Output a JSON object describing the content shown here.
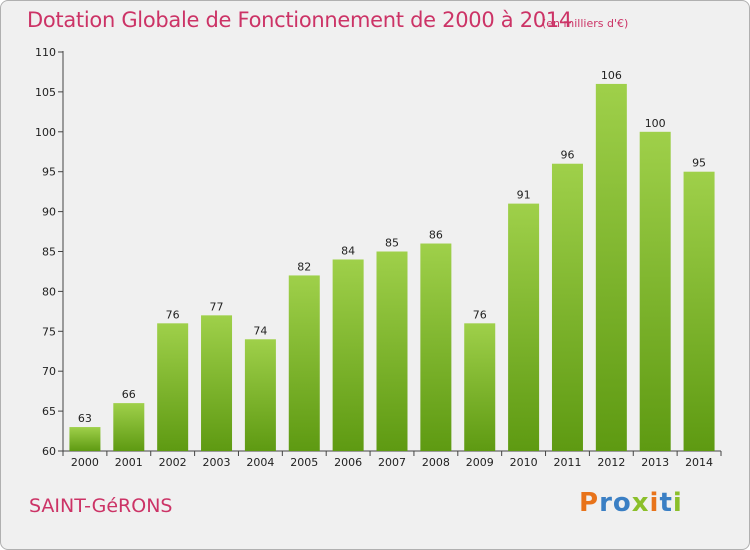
{
  "chart_data": {
    "type": "bar",
    "title": "Dotation Globale de Fonctionnement de 2000 à 2014",
    "unit": "(en milliers d'€)",
    "categories": [
      "2000",
      "2001",
      "2002",
      "2003",
      "2004",
      "2005",
      "2006",
      "2007",
      "2008",
      "2009",
      "2010",
      "2011",
      "2012",
      "2013",
      "2014"
    ],
    "values": [
      63,
      66,
      76,
      77,
      74,
      82,
      84,
      85,
      86,
      76,
      91,
      96,
      106,
      100,
      95
    ],
    "ylim": [
      60,
      110
    ],
    "yticks": [
      60,
      65,
      70,
      75,
      80,
      85,
      90,
      95,
      100,
      105,
      110
    ],
    "grid": false,
    "bar_color_top": "#9fd04a",
    "bar_color_bottom": "#5e9a12"
  },
  "footer": {
    "commune": "SAINT-GéRONS",
    "brand": "Proxiti",
    "brand_colors": [
      "#e8731a",
      "#3a7fc4",
      "#3a7fc4",
      "#8bbf2a",
      "#e8731a",
      "#3a7fc4",
      "#8bbf2a"
    ]
  }
}
